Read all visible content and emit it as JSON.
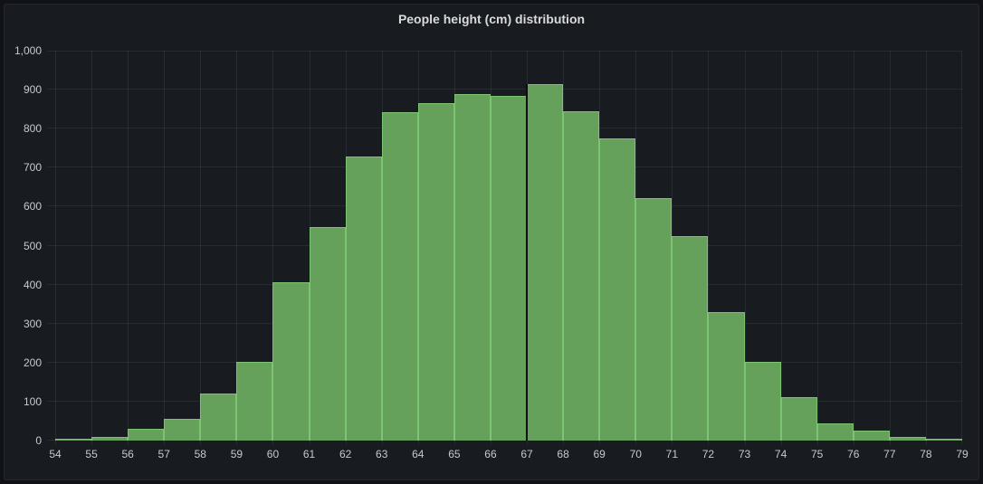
{
  "panel": {
    "title": "People height (cm) distribution"
  },
  "colors": {
    "background": "#111217",
    "panel_background": "#181b1f",
    "panel_border": "#25282d",
    "grid": "rgba(204,204,220,0.09)",
    "axis_text": "#c8c9d0",
    "title_text": "#d9dadb",
    "bar_fill": "#65a15b",
    "bar_border": "#7cc471",
    "divider": "#0d0e10"
  },
  "chart_data": {
    "type": "bar",
    "subtype": "histogram",
    "title": "People height (cm) distribution",
    "xlabel": "",
    "ylabel": "",
    "bin_size": 1,
    "xlim": [
      54,
      79
    ],
    "ylim": [
      0,
      1000
    ],
    "grid": true,
    "legend_position": "none",
    "categories": [
      54,
      55,
      56,
      57,
      58,
      59,
      60,
      61,
      62,
      63,
      64,
      65,
      66,
      67,
      68,
      69,
      70,
      71,
      72,
      73,
      74,
      75,
      76,
      77,
      78
    ],
    "values": [
      5,
      10,
      30,
      55,
      120,
      202,
      405,
      548,
      729,
      843,
      866,
      889,
      883,
      915,
      844,
      775,
      621,
      525,
      330,
      202,
      111,
      45,
      25,
      9,
      5
    ],
    "x_tick_labels": [
      "54",
      "55",
      "56",
      "57",
      "58",
      "59",
      "60",
      "61",
      "62",
      "63",
      "64",
      "65",
      "66",
      "67",
      "68",
      "69",
      "70",
      "71",
      "72",
      "73",
      "74",
      "75",
      "76",
      "77",
      "78",
      "79"
    ],
    "y_tick_labels": [
      "0",
      "100",
      "200",
      "300",
      "400",
      "500",
      "600",
      "700",
      "800",
      "900",
      "1,000"
    ],
    "y_tick_values": [
      0,
      100,
      200,
      300,
      400,
      500,
      600,
      700,
      800,
      900,
      1000
    ],
    "divider_after_category": 67
  }
}
